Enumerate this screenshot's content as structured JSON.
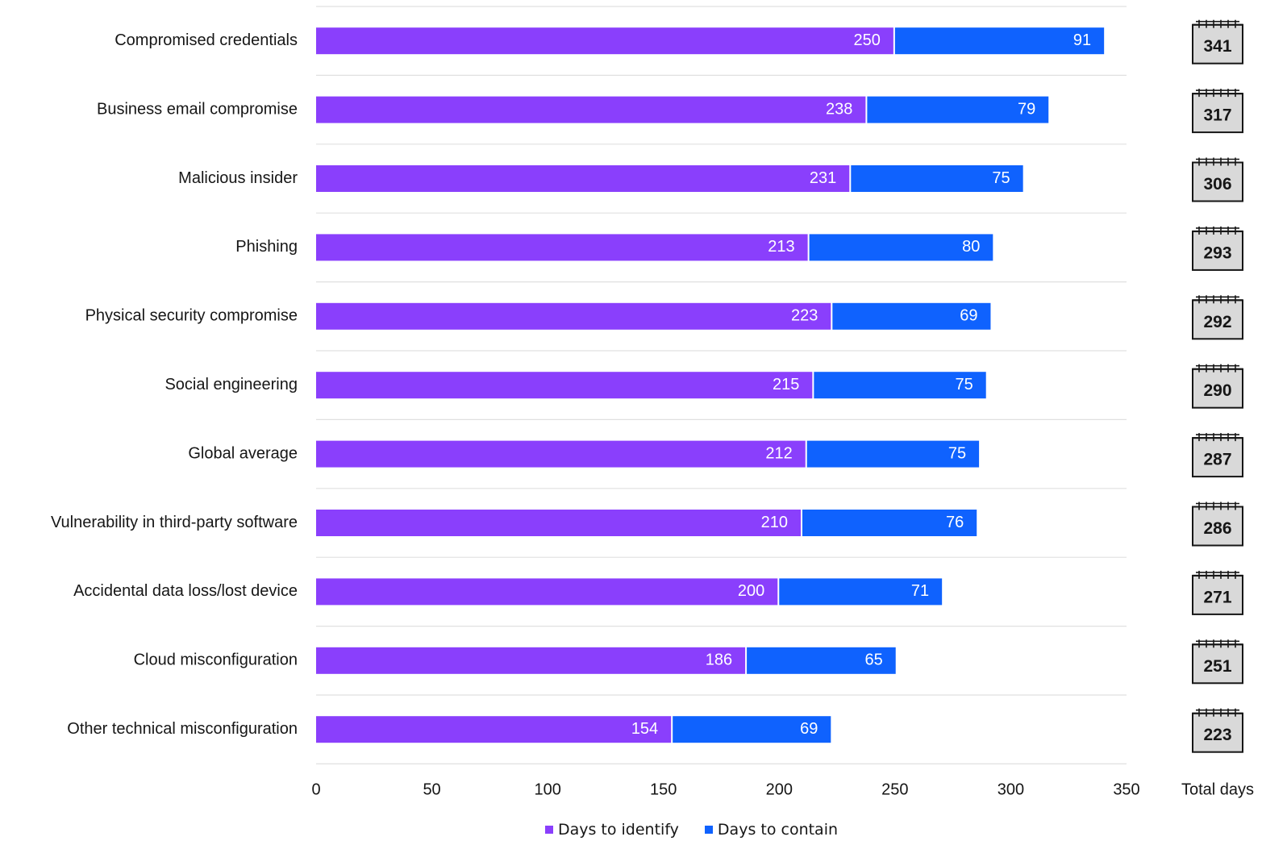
{
  "chart_data": {
    "type": "bar",
    "orientation": "horizontal",
    "stacked": true,
    "categories": [
      "Compromised credentials",
      "Business email compromise",
      "Malicious insider",
      "Phishing",
      "Physical security compromise",
      "Social engineering",
      "Global average",
      "Vulnerability in third-party software",
      "Accidental data loss/lost device",
      "Cloud misconfiguration",
      "Other technical misconfiguration"
    ],
    "series": [
      {
        "name": "Days to identify",
        "color": "#8a3ffc",
        "values": [
          250,
          238,
          231,
          213,
          223,
          215,
          212,
          210,
          200,
          186,
          154
        ]
      },
      {
        "name": "Days to contain",
        "color": "#0f62fe",
        "values": [
          91,
          79,
          75,
          80,
          69,
          75,
          75,
          76,
          71,
          65,
          69
        ]
      }
    ],
    "totals": [
      341,
      317,
      306,
      293,
      292,
      290,
      287,
      286,
      271,
      251,
      223
    ],
    "totals_label": "Total days",
    "xlim": [
      0,
      350
    ],
    "xticks": [
      0,
      50,
      100,
      150,
      200,
      250,
      300,
      350
    ],
    "grid": "horizontal row separators",
    "legend_position": "bottom-center",
    "title": "",
    "xlabel": "",
    "ylabel": ""
  }
}
